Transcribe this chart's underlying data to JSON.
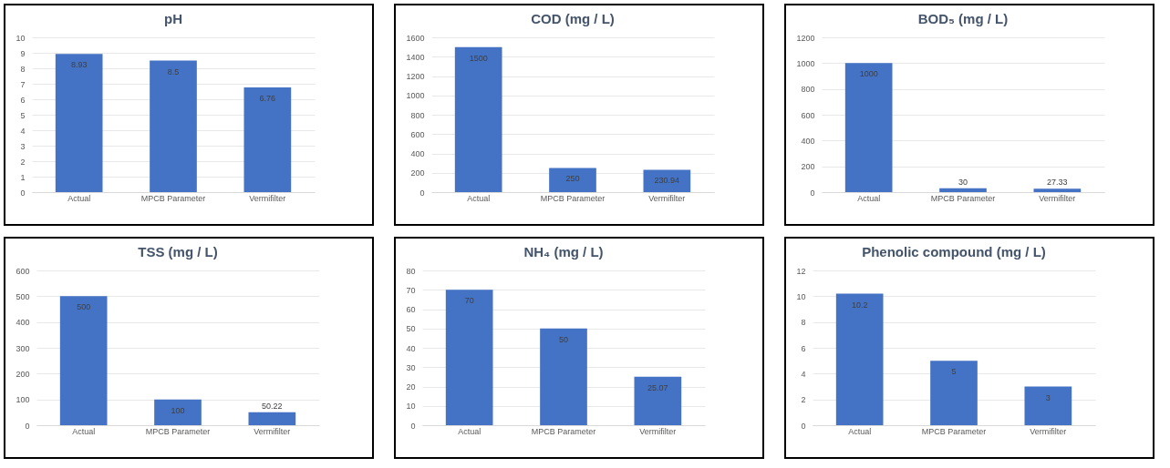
{
  "chart_data": [
    {
      "type": "bar",
      "title": "pH",
      "categories": [
        "Actual",
        "MPCB Parameter",
        "Vermifilter"
      ],
      "values": [
        8.93,
        8.5,
        6.76
      ],
      "color": "#4472c4",
      "ylim": [
        0,
        10
      ],
      "yticks": [
        0,
        1,
        2,
        3,
        4,
        5,
        6,
        7,
        8,
        9,
        10
      ],
      "grid": "y",
      "data_labels": true
    },
    {
      "type": "bar",
      "title": "COD (mg / L)",
      "categories": [
        "Actual",
        "MPCB Parameter",
        "Vermifilter"
      ],
      "values": [
        1500,
        250,
        230.94
      ],
      "color": "#4472c4",
      "ylim": [
        0,
        1600
      ],
      "yticks": [
        0,
        200,
        400,
        600,
        800,
        1000,
        1200,
        1400,
        1600
      ],
      "grid": "y",
      "data_labels": true
    },
    {
      "type": "bar",
      "title": "BOD₅ (mg / L)",
      "categories": [
        "Actual",
        "MPCB Parameter",
        "Vermifilter"
      ],
      "values": [
        1000,
        30,
        27.33
      ],
      "color": "#4472c4",
      "ylim": [
        0,
        1200
      ],
      "yticks": [
        0,
        200,
        400,
        600,
        800,
        1000,
        1200
      ],
      "grid": "y",
      "data_labels": true
    },
    {
      "type": "bar",
      "title": "TSS (mg / L)",
      "categories": [
        "Actual",
        "MPCB Parameter",
        "Vermifilter"
      ],
      "values": [
        500,
        100,
        50.22
      ],
      "color": "#4472c4",
      "ylim": [
        0,
        600
      ],
      "yticks": [
        0,
        100,
        200,
        300,
        400,
        500,
        600
      ],
      "grid": "y",
      "data_labels": true
    },
    {
      "type": "bar",
      "title": "NH₄ (mg / L)",
      "categories": [
        "Actual",
        "MPCB Parameter",
        "Vermifilter"
      ],
      "values": [
        70,
        50,
        25.07
      ],
      "color": "#4472c4",
      "ylim": [
        0,
        80
      ],
      "yticks": [
        0,
        10,
        20,
        30,
        40,
        50,
        60,
        70,
        80
      ],
      "grid": "y",
      "data_labels": true
    },
    {
      "type": "bar",
      "title": "Phenolic compound (mg / L)",
      "categories": [
        "Actual",
        "MPCB Parameter",
        "Vermifilter"
      ],
      "values": [
        10.2,
        5,
        3
      ],
      "color": "#4472c4",
      "ylim": [
        0,
        12
      ],
      "yticks": [
        0,
        2,
        4,
        6,
        8,
        10,
        12
      ],
      "grid": "y",
      "data_labels": true
    }
  ]
}
